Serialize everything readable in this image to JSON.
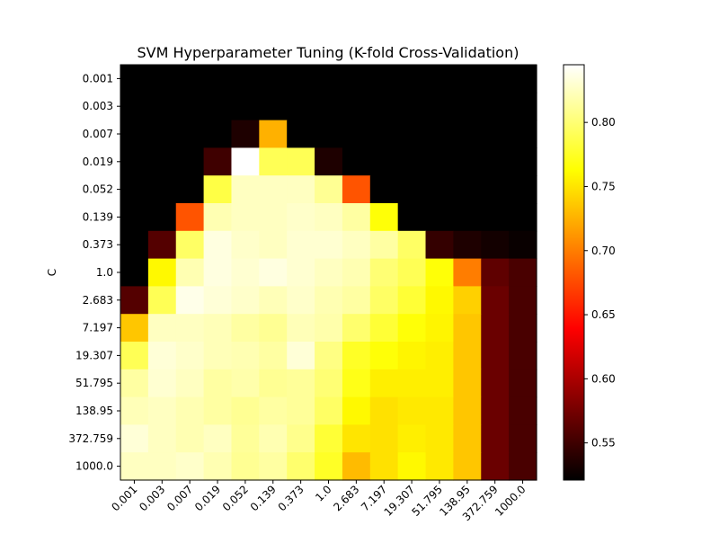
{
  "chart_data": {
    "type": "heatmap",
    "title": "SVM Hyperparameter Tuning (K-fold Cross-Validation)",
    "ylabel": "C",
    "xlabel": "",
    "x_categories": [
      "0.001",
      "0.003",
      "0.007",
      "0.019",
      "0.052",
      "0.139",
      "0.373",
      "1.0",
      "2.683",
      "7.197",
      "19.307",
      "51.795",
      "138.95",
      "372.759",
      "1000.0"
    ],
    "y_categories": [
      "0.001",
      "0.003",
      "0.007",
      "0.019",
      "0.052",
      "0.139",
      "0.373",
      "1.0",
      "2.683",
      "7.197",
      "19.307",
      "51.795",
      "138.95",
      "372.759",
      "1000.0"
    ],
    "colormap": "hot",
    "vmin": 0.521,
    "vmax": 0.845,
    "colorbar_ticks": [
      0.55,
      0.6,
      0.65,
      0.7,
      0.75,
      0.8
    ],
    "colorbar_tick_labels": [
      "0.55",
      "0.60",
      "0.65",
      "0.70",
      "0.75",
      "0.80"
    ],
    "values": [
      [
        0.521,
        0.521,
        0.521,
        0.521,
        0.521,
        0.521,
        0.521,
        0.521,
        0.521,
        0.521,
        0.521,
        0.521,
        0.521,
        0.521,
        0.521
      ],
      [
        0.521,
        0.521,
        0.521,
        0.521,
        0.521,
        0.521,
        0.521,
        0.521,
        0.521,
        0.521,
        0.521,
        0.521,
        0.521,
        0.521,
        0.521
      ],
      [
        0.521,
        0.521,
        0.521,
        0.521,
        0.535,
        0.725,
        0.521,
        0.521,
        0.521,
        0.521,
        0.521,
        0.521,
        0.521,
        0.521,
        0.521
      ],
      [
        0.521,
        0.521,
        0.521,
        0.55,
        0.845,
        0.79,
        0.79,
        0.535,
        0.521,
        0.521,
        0.521,
        0.521,
        0.521,
        0.521,
        0.521
      ],
      [
        0.521,
        0.521,
        0.521,
        0.785,
        0.825,
        0.825,
        0.825,
        0.81,
        0.68,
        0.521,
        0.521,
        0.521,
        0.521,
        0.521,
        0.521
      ],
      [
        0.521,
        0.521,
        0.68,
        0.82,
        0.825,
        0.825,
        0.828,
        0.825,
        0.815,
        0.765,
        0.521,
        0.521,
        0.521,
        0.521,
        0.521
      ],
      [
        0.521,
        0.56,
        0.795,
        0.835,
        0.828,
        0.825,
        0.83,
        0.83,
        0.825,
        0.815,
        0.795,
        0.545,
        0.535,
        0.53,
        0.525
      ],
      [
        0.521,
        0.76,
        0.82,
        0.835,
        0.83,
        0.835,
        0.83,
        0.825,
        0.82,
        0.8,
        0.79,
        0.765,
        0.7,
        0.565,
        0.555
      ],
      [
        0.56,
        0.79,
        0.838,
        0.832,
        0.828,
        0.822,
        0.828,
        0.82,
        0.815,
        0.795,
        0.78,
        0.76,
        0.74,
        0.57,
        0.555
      ],
      [
        0.735,
        0.825,
        0.825,
        0.822,
        0.815,
        0.81,
        0.822,
        0.818,
        0.798,
        0.78,
        0.765,
        0.758,
        0.735,
        0.57,
        0.555
      ],
      [
        0.79,
        0.832,
        0.828,
        0.822,
        0.82,
        0.815,
        0.832,
        0.805,
        0.775,
        0.765,
        0.758,
        0.755,
        0.735,
        0.57,
        0.555
      ],
      [
        0.815,
        0.83,
        0.825,
        0.815,
        0.818,
        0.81,
        0.812,
        0.8,
        0.77,
        0.755,
        0.755,
        0.755,
        0.735,
        0.57,
        0.555
      ],
      [
        0.822,
        0.825,
        0.82,
        0.815,
        0.81,
        0.815,
        0.812,
        0.795,
        0.76,
        0.748,
        0.752,
        0.752,
        0.735,
        0.57,
        0.555
      ],
      [
        0.832,
        0.825,
        0.82,
        0.825,
        0.812,
        0.82,
        0.808,
        0.78,
        0.75,
        0.748,
        0.755,
        0.752,
        0.735,
        0.57,
        0.555
      ],
      [
        0.825,
        0.825,
        0.828,
        0.82,
        0.81,
        0.815,
        0.798,
        0.775,
        0.73,
        0.748,
        0.76,
        0.752,
        0.735,
        0.57,
        0.555
      ]
    ]
  }
}
